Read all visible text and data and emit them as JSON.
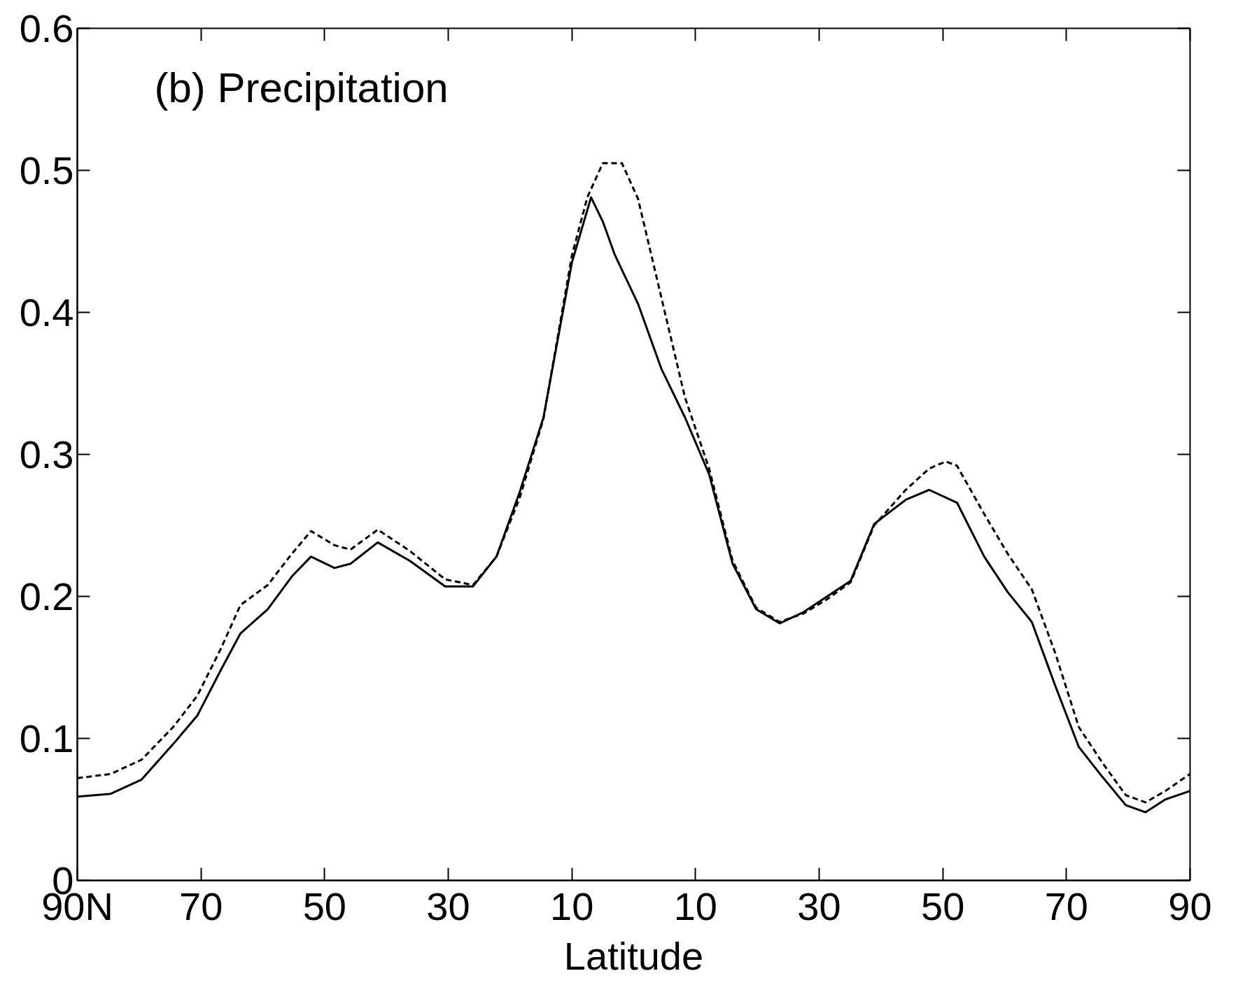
{
  "chart_data": {
    "type": "line",
    "xlabel": "Latitude",
    "annotations": [
      "(b) Precipitation"
    ],
    "xlim": [
      90,
      -90
    ],
    "xticks": [
      {
        "value": 90,
        "label": "90N"
      },
      70,
      50,
      30,
      10,
      {
        "value": -10,
        "label": "10"
      },
      {
        "value": -30,
        "label": "30"
      },
      {
        "value": -50,
        "label": "50"
      },
      {
        "value": -70,
        "label": "70"
      },
      {
        "value": -90,
        "label": "90"
      }
    ],
    "ylim": [
      0,
      0.6
    ],
    "yticks": [
      0,
      0.1,
      0.2,
      0.3,
      0.4,
      0.5,
      0.6
    ],
    "grid": false,
    "x": [
      90,
      84.6,
      79.6,
      74.5,
      70.6,
      66.8,
      63.6,
      59.2,
      55.3,
      52.2,
      48.4,
      45.8,
      41.4,
      36.2,
      30.5,
      26.0,
      22.2,
      18.4,
      14.6,
      10,
      6.9,
      5.0,
      3.1,
      -0.7,
      -4.5,
      -8.3,
      -12.2,
      -16.0,
      -19.8,
      -23.6,
      -27.5,
      -31.3,
      -35.1,
      -38.9,
      -44.0,
      -47.8,
      -52.3,
      -56.7,
      -60.5,
      -64.4,
      -68.2,
      -72.0,
      -75.8,
      -79.6,
      -82.8,
      -86.0,
      -90
    ],
    "series": [
      {
        "color": "#000000",
        "line_style": "solid",
        "values": [
          0.059,
          0.061,
          0.071,
          0.096,
          0.116,
          0.148,
          0.174,
          0.191,
          0.214,
          0.228,
          0.22,
          0.223,
          0.238,
          0.225,
          0.207,
          0.207,
          0.228,
          0.274,
          0.326,
          0.435,
          0.481,
          0.464,
          0.441,
          0.406,
          0.36,
          0.326,
          0.286,
          0.223,
          0.191,
          0.181,
          0.189,
          0.2,
          0.211,
          0.251,
          0.268,
          0.275,
          0.266,
          0.228,
          0.203,
          0.182,
          0.137,
          0.094,
          0.073,
          0.053,
          0.048,
          0.057,
          0.063
        ]
      },
      {
        "color": "#000000",
        "line_style": "dashed",
        "x": [
          90,
          84.6,
          79.6,
          74.5,
          70.6,
          66.8,
          63.6,
          59.2,
          55.3,
          52.2,
          48.4,
          45.8,
          41.4,
          36.2,
          30.5,
          26.0,
          22.2,
          18.4,
          14.6,
          10,
          7.5,
          5.0,
          1.9,
          -0.7,
          -4.5,
          -8.3,
          -12.2,
          -16.0,
          -19.8,
          -23.6,
          -27.5,
          -31.3,
          -35.1,
          -38.9,
          -44.0,
          -47.8,
          -50.5,
          -52.3,
          -56.7,
          -60.5,
          -64.4,
          -68.2,
          -72.0,
          -75.8,
          -79.6,
          -82.8,
          -86.0,
          -90
        ],
        "values": [
          0.072,
          0.075,
          0.085,
          0.108,
          0.13,
          0.163,
          0.194,
          0.208,
          0.23,
          0.246,
          0.236,
          0.233,
          0.247,
          0.232,
          0.212,
          0.208,
          0.228,
          0.27,
          0.325,
          0.44,
          0.481,
          0.505,
          0.505,
          0.48,
          0.41,
          0.34,
          0.29,
          0.225,
          0.192,
          0.182,
          0.188,
          0.198,
          0.21,
          0.25,
          0.275,
          0.29,
          0.295,
          0.292,
          0.258,
          0.23,
          0.205,
          0.16,
          0.108,
          0.083,
          0.06,
          0.055,
          0.063,
          0.075
        ]
      }
    ]
  }
}
